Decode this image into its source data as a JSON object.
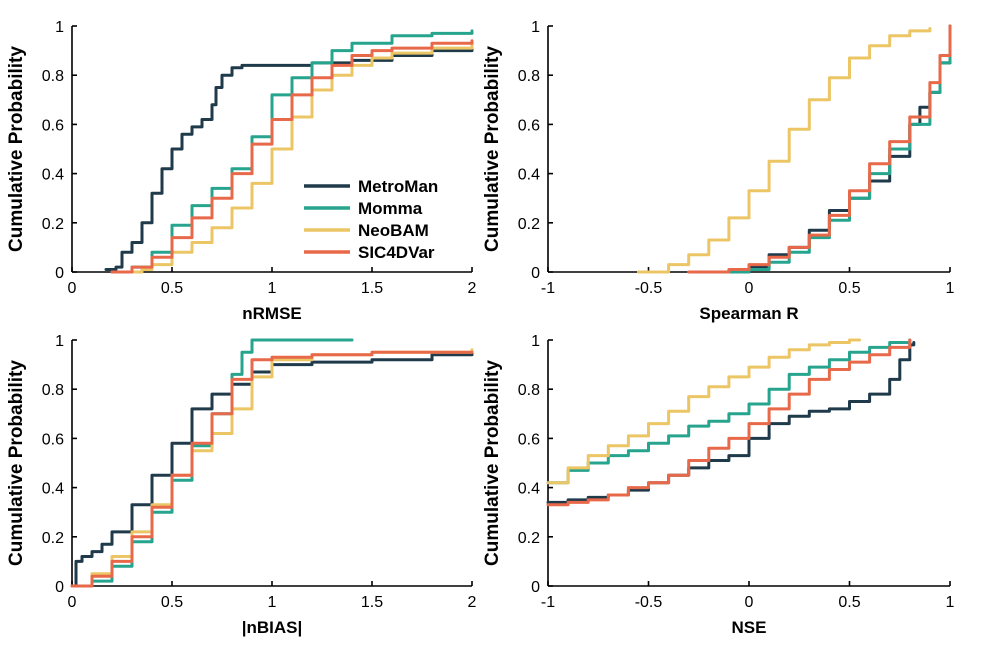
{
  "colors": {
    "MetroMan": "#1f3a4a",
    "Momma": "#27a48e",
    "NeoBAM": "#ecc565",
    "SIC4DVar": "#e8694a"
  },
  "legend": {
    "entries": [
      "MetroMan",
      "Momma",
      "NeoBAM",
      "SIC4DVar"
    ]
  },
  "chart_data": [
    {
      "type": "line",
      "id": "nrmse",
      "xlabel": "nRMSE",
      "ylabel": "Cumulative Probability",
      "xlim": [
        0,
        2
      ],
      "ylim": [
        0,
        1
      ],
      "xticks": [
        0,
        0.5,
        1,
        1.5,
        2
      ],
      "xticklabels": [
        "0",
        "0.5",
        "1",
        "1.5",
        "2"
      ],
      "yticks": [
        0,
        0.2,
        0.4,
        0.6,
        0.8,
        1
      ],
      "yticklabels": [
        "0",
        "0.2",
        "0.4",
        "0.6",
        "0.8",
        "1"
      ],
      "series": [
        {
          "name": "MetroMan",
          "x": [
            0.17,
            0.22,
            0.25,
            0.3,
            0.35,
            0.4,
            0.45,
            0.5,
            0.55,
            0.6,
            0.65,
            0.7,
            0.72,
            0.75,
            0.8,
            0.85,
            0.9,
            1.0,
            1.2,
            1.4,
            1.6,
            1.8,
            2.0
          ],
          "y": [
            0.01,
            0.02,
            0.08,
            0.12,
            0.2,
            0.32,
            0.42,
            0.5,
            0.56,
            0.59,
            0.62,
            0.68,
            0.75,
            0.8,
            0.83,
            0.84,
            0.84,
            0.84,
            0.85,
            0.86,
            0.88,
            0.9,
            0.91
          ]
        },
        {
          "name": "Momma",
          "x": [
            0.2,
            0.3,
            0.4,
            0.5,
            0.6,
            0.7,
            0.8,
            0.9,
            1.0,
            1.1,
            1.2,
            1.3,
            1.4,
            1.6,
            1.8,
            2.0
          ],
          "y": [
            0.0,
            0.02,
            0.08,
            0.19,
            0.27,
            0.34,
            0.42,
            0.55,
            0.72,
            0.79,
            0.85,
            0.9,
            0.93,
            0.96,
            0.97,
            0.98
          ]
        },
        {
          "name": "NeoBAM",
          "x": [
            0.3,
            0.35,
            0.4,
            0.5,
            0.6,
            0.7,
            0.8,
            0.9,
            1.0,
            1.1,
            1.2,
            1.3,
            1.4,
            1.5,
            1.6,
            1.8,
            2.0
          ],
          "y": [
            0.0,
            0.01,
            0.03,
            0.08,
            0.12,
            0.18,
            0.26,
            0.36,
            0.5,
            0.63,
            0.74,
            0.8,
            0.84,
            0.87,
            0.89,
            0.91,
            0.93
          ]
        },
        {
          "name": "SIC4DVar",
          "x": [
            0.2,
            0.3,
            0.4,
            0.5,
            0.6,
            0.7,
            0.8,
            0.9,
            1.0,
            1.1,
            1.2,
            1.3,
            1.4,
            1.5,
            1.6,
            1.8,
            2.0
          ],
          "y": [
            0.0,
            0.02,
            0.06,
            0.14,
            0.22,
            0.3,
            0.4,
            0.52,
            0.62,
            0.72,
            0.79,
            0.84,
            0.88,
            0.9,
            0.91,
            0.93,
            0.94
          ]
        }
      ]
    },
    {
      "type": "line",
      "id": "spearman",
      "xlabel": "Spearman R",
      "ylabel": "Cumulative Probability",
      "xlim": [
        -1,
        1
      ],
      "ylim": [
        0,
        1
      ],
      "xticks": [
        -1,
        -0.5,
        0,
        0.5,
        1
      ],
      "xticklabels": [
        "-1",
        "-0.5",
        "0",
        "0.5",
        "1"
      ],
      "yticks": [
        0,
        0.2,
        0.4,
        0.6,
        0.8,
        1
      ],
      "yticklabels": [
        "0",
        "0.2",
        "0.4",
        "0.6",
        "0.8",
        "1"
      ],
      "series": [
        {
          "name": "MetroMan",
          "x": [
            -0.1,
            0.0,
            0.1,
            0.2,
            0.3,
            0.4,
            0.5,
            0.6,
            0.7,
            0.8,
            0.85,
            0.9,
            0.95,
            1.0
          ],
          "y": [
            0.0,
            0.02,
            0.07,
            0.1,
            0.17,
            0.25,
            0.3,
            0.37,
            0.47,
            0.6,
            0.67,
            0.73,
            0.85,
            1.0
          ]
        },
        {
          "name": "Momma",
          "x": [
            -0.1,
            0.0,
            0.1,
            0.2,
            0.3,
            0.4,
            0.5,
            0.6,
            0.7,
            0.8,
            0.9,
            0.95,
            1.0
          ],
          "y": [
            0.0,
            0.01,
            0.04,
            0.08,
            0.14,
            0.21,
            0.3,
            0.4,
            0.5,
            0.6,
            0.73,
            0.85,
            0.98
          ]
        },
        {
          "name": "NeoBAM",
          "x": [
            -0.55,
            -0.4,
            -0.3,
            -0.2,
            -0.1,
            0.0,
            0.1,
            0.2,
            0.3,
            0.4,
            0.5,
            0.6,
            0.7,
            0.8,
            0.9
          ],
          "y": [
            0.0,
            0.03,
            0.07,
            0.13,
            0.22,
            0.33,
            0.45,
            0.58,
            0.7,
            0.79,
            0.87,
            0.92,
            0.96,
            0.98,
            0.99
          ]
        },
        {
          "name": "SIC4DVar",
          "x": [
            -0.3,
            -0.2,
            -0.1,
            0.0,
            0.1,
            0.2,
            0.3,
            0.4,
            0.5,
            0.6,
            0.7,
            0.8,
            0.9,
            0.95,
            1.0
          ],
          "y": [
            0.0,
            0.0,
            0.01,
            0.03,
            0.06,
            0.1,
            0.15,
            0.23,
            0.33,
            0.44,
            0.53,
            0.63,
            0.77,
            0.88,
            1.0
          ]
        }
      ]
    },
    {
      "type": "line",
      "id": "nbias",
      "xlabel": "|nBIAS|",
      "ylabel": "Cumulative Probability",
      "xlim": [
        0,
        2
      ],
      "ylim": [
        0,
        1
      ],
      "xticks": [
        0,
        0.5,
        1,
        1.5,
        2
      ],
      "xticklabels": [
        "0",
        "0.5",
        "1",
        "1.5",
        "2"
      ],
      "yticks": [
        0,
        0.2,
        0.4,
        0.6,
        0.8,
        1
      ],
      "yticklabels": [
        "0",
        "0.2",
        "0.4",
        "0.6",
        "0.8",
        "1"
      ],
      "series": [
        {
          "name": "MetroMan",
          "x": [
            0.0,
            0.02,
            0.05,
            0.1,
            0.15,
            0.2,
            0.3,
            0.4,
            0.5,
            0.6,
            0.7,
            0.8,
            0.9,
            1.0,
            1.2,
            1.5,
            1.8,
            2.0
          ],
          "y": [
            0.0,
            0.1,
            0.12,
            0.14,
            0.17,
            0.22,
            0.33,
            0.45,
            0.58,
            0.72,
            0.78,
            0.82,
            0.87,
            0.9,
            0.91,
            0.92,
            0.94,
            0.95
          ]
        },
        {
          "name": "Momma",
          "x": [
            0.0,
            0.1,
            0.2,
            0.3,
            0.4,
            0.5,
            0.6,
            0.7,
            0.8,
            0.85,
            0.9,
            1.0,
            1.2,
            1.4
          ],
          "y": [
            0.0,
            0.02,
            0.08,
            0.18,
            0.3,
            0.43,
            0.57,
            0.7,
            0.86,
            0.95,
            1.0,
            1.0,
            1.0,
            1.0
          ]
        },
        {
          "name": "NeoBAM",
          "x": [
            0.0,
            0.1,
            0.2,
            0.3,
            0.4,
            0.5,
            0.6,
            0.7,
            0.8,
            0.9,
            1.0,
            1.2,
            1.5,
            2.0
          ],
          "y": [
            0.0,
            0.05,
            0.12,
            0.22,
            0.33,
            0.45,
            0.55,
            0.62,
            0.72,
            0.85,
            0.92,
            0.94,
            0.95,
            0.96
          ]
        },
        {
          "name": "SIC4DVar",
          "x": [
            0.0,
            0.1,
            0.2,
            0.3,
            0.4,
            0.5,
            0.6,
            0.7,
            0.8,
            0.9,
            1.0,
            1.2,
            1.5,
            2.0
          ],
          "y": [
            0.0,
            0.04,
            0.1,
            0.2,
            0.32,
            0.45,
            0.58,
            0.7,
            0.84,
            0.92,
            0.93,
            0.94,
            0.95,
            0.95
          ]
        }
      ]
    },
    {
      "type": "line",
      "id": "nse",
      "xlabel": "NSE",
      "ylabel": "Cumulative Probability",
      "xlim": [
        -1,
        1
      ],
      "ylim": [
        0,
        1
      ],
      "xticks": [
        -1,
        -0.5,
        0,
        0.5,
        1
      ],
      "xticklabels": [
        "-1",
        "-0.5",
        "0",
        "0.5",
        "1"
      ],
      "yticks": [
        0,
        0.2,
        0.4,
        0.6,
        0.8,
        1
      ],
      "yticklabels": [
        "0",
        "0.2",
        "0.4",
        "0.6",
        "0.8",
        "1"
      ],
      "series": [
        {
          "name": "MetroMan",
          "x": [
            -1.0,
            -0.9,
            -0.8,
            -0.7,
            -0.6,
            -0.5,
            -0.4,
            -0.3,
            -0.2,
            -0.1,
            0.0,
            0.1,
            0.2,
            0.3,
            0.4,
            0.5,
            0.6,
            0.7,
            0.75,
            0.8,
            0.82
          ],
          "y": [
            0.34,
            0.35,
            0.36,
            0.37,
            0.39,
            0.42,
            0.45,
            0.48,
            0.51,
            0.53,
            0.6,
            0.66,
            0.69,
            0.71,
            0.72,
            0.75,
            0.78,
            0.84,
            0.92,
            0.98,
            0.99
          ]
        },
        {
          "name": "Momma",
          "x": [
            -1.0,
            -0.9,
            -0.8,
            -0.7,
            -0.6,
            -0.5,
            -0.4,
            -0.3,
            -0.2,
            -0.1,
            0.0,
            0.1,
            0.2,
            0.3,
            0.4,
            0.5,
            0.6,
            0.7,
            0.8
          ],
          "y": [
            0.42,
            0.47,
            0.5,
            0.53,
            0.55,
            0.58,
            0.61,
            0.65,
            0.67,
            0.7,
            0.74,
            0.8,
            0.86,
            0.89,
            0.92,
            0.95,
            0.97,
            0.99,
            1.0
          ]
        },
        {
          "name": "NeoBAM",
          "x": [
            -1.0,
            -0.9,
            -0.8,
            -0.7,
            -0.6,
            -0.5,
            -0.4,
            -0.3,
            -0.2,
            -0.1,
            0.0,
            0.1,
            0.2,
            0.3,
            0.4,
            0.5,
            0.55
          ],
          "y": [
            0.42,
            0.48,
            0.53,
            0.57,
            0.61,
            0.66,
            0.71,
            0.77,
            0.81,
            0.85,
            0.89,
            0.93,
            0.96,
            0.98,
            0.99,
            1.0,
            1.0
          ]
        },
        {
          "name": "SIC4DVar",
          "x": [
            -1.0,
            -0.9,
            -0.8,
            -0.7,
            -0.6,
            -0.5,
            -0.4,
            -0.3,
            -0.2,
            -0.1,
            0.0,
            0.1,
            0.2,
            0.3,
            0.4,
            0.5,
            0.6,
            0.7,
            0.8
          ],
          "y": [
            0.33,
            0.34,
            0.35,
            0.37,
            0.4,
            0.42,
            0.45,
            0.51,
            0.56,
            0.6,
            0.66,
            0.72,
            0.78,
            0.84,
            0.88,
            0.91,
            0.94,
            0.97,
            1.0
          ]
        }
      ]
    }
  ]
}
